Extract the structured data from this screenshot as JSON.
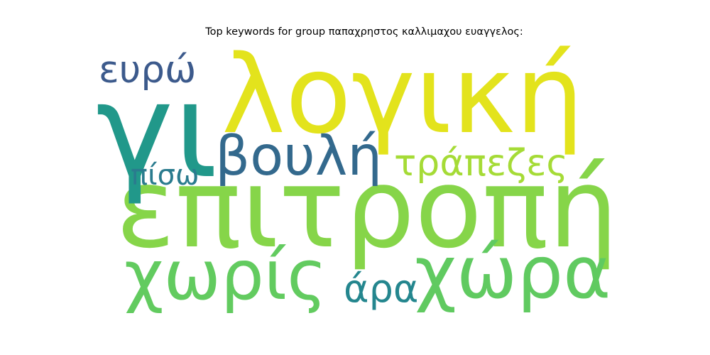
{
  "title": "Top keywords for group παπαχρηστος καλλιμαχου ευαγγελος:",
  "words": [
    {
      "text": "λογική",
      "color": "#e3e31c"
    },
    {
      "text": "επιτροπή",
      "color": "#86d549"
    },
    {
      "text": "γι",
      "color": "#21988a"
    },
    {
      "text": "χώρα",
      "color": "#60ca60"
    },
    {
      "text": "χωρίς",
      "color": "#62cb5f"
    },
    {
      "text": "βουλή",
      "color": "#33698d"
    },
    {
      "text": "τράπεζες",
      "color": "#a5db36"
    },
    {
      "text": "ευρώ",
      "color": "#3c5a8c"
    },
    {
      "text": "πίσω",
      "color": "#2a7b8e"
    },
    {
      "text": "άρα",
      "color": "#24868e"
    }
  ]
}
